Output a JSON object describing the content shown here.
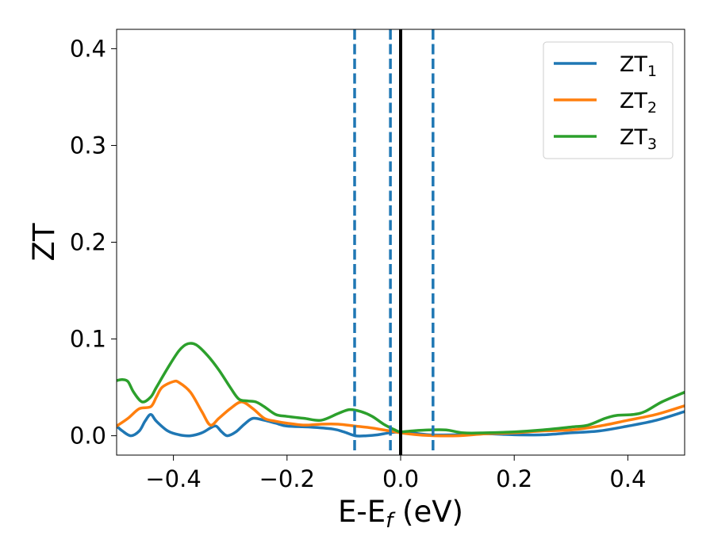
{
  "chart_data": {
    "type": "line",
    "xlabel_main": "E-E",
    "xlabel_sub": "f",
    "xlabel_unit": " (eV)",
    "ylabel": "ZT",
    "xlim": [
      -0.5,
      0.5
    ],
    "ylim": [
      -0.02,
      0.42
    ],
    "xticks": [
      -0.4,
      -0.2,
      0.0,
      0.2,
      0.4
    ],
    "xtick_labels": [
      "−0.4",
      "−0.2",
      "0.0",
      "0.2",
      "0.4"
    ],
    "yticks": [
      0.0,
      0.1,
      0.2,
      0.3,
      0.4
    ],
    "ytick_labels": [
      "0.0",
      "0.1",
      "0.2",
      "0.3",
      "0.4"
    ],
    "legend_position": "top-right",
    "vlines": [
      {
        "x": -0.081,
        "style": "dashed",
        "color": "#1f77b4"
      },
      {
        "x": -0.018,
        "style": "dashed",
        "color": "#1f77b4"
      },
      {
        "x": 0.057,
        "style": "dashed",
        "color": "#1f77b4"
      },
      {
        "x": 0.0,
        "style": "solid",
        "color": "#000000"
      }
    ],
    "series": [
      {
        "name": "ZT",
        "name_sub": "1",
        "color": "#1f77b4",
        "points": [
          [
            -0.5,
            0.01
          ],
          [
            -0.49,
            0.005
          ],
          [
            -0.475,
            0.0
          ],
          [
            -0.46,
            0.005
          ],
          [
            -0.45,
            0.015
          ],
          [
            -0.44,
            0.022
          ],
          [
            -0.43,
            0.015
          ],
          [
            -0.41,
            0.005
          ],
          [
            -0.39,
            0.001
          ],
          [
            -0.37,
            0.0
          ],
          [
            -0.35,
            0.003
          ],
          [
            -0.335,
            0.008
          ],
          [
            -0.325,
            0.01
          ],
          [
            -0.315,
            0.004
          ],
          [
            -0.305,
            0.0
          ],
          [
            -0.29,
            0.004
          ],
          [
            -0.275,
            0.012
          ],
          [
            -0.26,
            0.018
          ],
          [
            -0.24,
            0.016
          ],
          [
            -0.22,
            0.013
          ],
          [
            -0.2,
            0.01
          ],
          [
            -0.16,
            0.009
          ],
          [
            -0.12,
            0.007
          ],
          [
            -0.1,
            0.004
          ],
          [
            -0.08,
            0.0
          ],
          [
            -0.06,
            0.0
          ],
          [
            -0.04,
            0.001
          ],
          [
            -0.02,
            0.003
          ],
          [
            0.0,
            0.004
          ],
          [
            0.02,
            0.003
          ],
          [
            0.05,
            0.001
          ],
          [
            0.1,
            0.001
          ],
          [
            0.15,
            0.002
          ],
          [
            0.2,
            0.001
          ],
          [
            0.25,
            0.001
          ],
          [
            0.3,
            0.003
          ],
          [
            0.35,
            0.005
          ],
          [
            0.4,
            0.01
          ],
          [
            0.45,
            0.016
          ],
          [
            0.5,
            0.025
          ]
        ]
      },
      {
        "name": "ZT",
        "name_sub": "2",
        "color": "#ff7f0e",
        "points": [
          [
            -0.5,
            0.01
          ],
          [
            -0.48,
            0.018
          ],
          [
            -0.46,
            0.028
          ],
          [
            -0.44,
            0.03
          ],
          [
            -0.43,
            0.04
          ],
          [
            -0.42,
            0.05
          ],
          [
            -0.4,
            0.056
          ],
          [
            -0.39,
            0.055
          ],
          [
            -0.37,
            0.045
          ],
          [
            -0.35,
            0.025
          ],
          [
            -0.335,
            0.011
          ],
          [
            -0.32,
            0.018
          ],
          [
            -0.3,
            0.028
          ],
          [
            -0.28,
            0.035
          ],
          [
            -0.26,
            0.028
          ],
          [
            -0.24,
            0.018
          ],
          [
            -0.22,
            0.015
          ],
          [
            -0.2,
            0.013
          ],
          [
            -0.17,
            0.011
          ],
          [
            -0.14,
            0.012
          ],
          [
            -0.11,
            0.012
          ],
          [
            -0.08,
            0.01
          ],
          [
            -0.05,
            0.008
          ],
          [
            -0.02,
            0.005
          ],
          [
            0.0,
            0.003
          ],
          [
            0.03,
            0.001
          ],
          [
            0.06,
            0.0
          ],
          [
            0.1,
            0.0
          ],
          [
            0.15,
            0.002
          ],
          [
            0.2,
            0.003
          ],
          [
            0.25,
            0.005
          ],
          [
            0.3,
            0.006
          ],
          [
            0.35,
            0.01
          ],
          [
            0.4,
            0.016
          ],
          [
            0.45,
            0.022
          ],
          [
            0.5,
            0.031
          ]
        ]
      },
      {
        "name": "ZT",
        "name_sub": "3",
        "color": "#2ca02c",
        "points": [
          [
            -0.5,
            0.057
          ],
          [
            -0.49,
            0.058
          ],
          [
            -0.48,
            0.056
          ],
          [
            -0.47,
            0.045
          ],
          [
            -0.455,
            0.035
          ],
          [
            -0.44,
            0.04
          ],
          [
            -0.43,
            0.05
          ],
          [
            -0.41,
            0.07
          ],
          [
            -0.39,
            0.088
          ],
          [
            -0.375,
            0.095
          ],
          [
            -0.36,
            0.094
          ],
          [
            -0.34,
            0.083
          ],
          [
            -0.32,
            0.068
          ],
          [
            -0.3,
            0.05
          ],
          [
            -0.285,
            0.038
          ],
          [
            -0.27,
            0.036
          ],
          [
            -0.255,
            0.035
          ],
          [
            -0.24,
            0.03
          ],
          [
            -0.22,
            0.022
          ],
          [
            -0.2,
            0.02
          ],
          [
            -0.17,
            0.018
          ],
          [
            -0.14,
            0.016
          ],
          [
            -0.11,
            0.023
          ],
          [
            -0.09,
            0.027
          ],
          [
            -0.07,
            0.025
          ],
          [
            -0.05,
            0.02
          ],
          [
            -0.03,
            0.012
          ],
          [
            -0.01,
            0.006
          ],
          [
            0.0,
            0.004
          ],
          [
            0.02,
            0.005
          ],
          [
            0.05,
            0.006
          ],
          [
            0.08,
            0.006
          ],
          [
            0.11,
            0.003
          ],
          [
            0.15,
            0.003
          ],
          [
            0.2,
            0.004
          ],
          [
            0.25,
            0.006
          ],
          [
            0.3,
            0.009
          ],
          [
            0.33,
            0.011
          ],
          [
            0.36,
            0.018
          ],
          [
            0.38,
            0.021
          ],
          [
            0.41,
            0.022
          ],
          [
            0.43,
            0.025
          ],
          [
            0.46,
            0.035
          ],
          [
            0.5,
            0.045
          ]
        ]
      }
    ]
  }
}
